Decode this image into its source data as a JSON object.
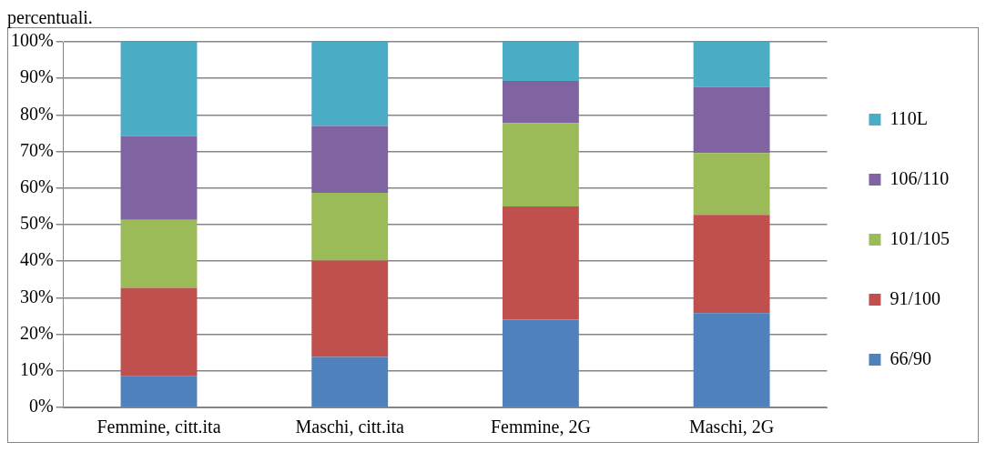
{
  "chart_data": {
    "type": "bar",
    "title": "percentuali.",
    "stacked": true,
    "categories": [
      "Femmine, citt.ita",
      "Maschi, citt.ita",
      "Femmine, 2G",
      "Maschi, 2G"
    ],
    "series": [
      {
        "name": "66/90",
        "color": "#4f81bd",
        "values": [
          8.5,
          13.8,
          24.0,
          25.8
        ]
      },
      {
        "name": "91/100",
        "color": "#c0504d",
        "values": [
          24.2,
          26.4,
          31.0,
          26.9
        ]
      },
      {
        "name": "101/105",
        "color": "#9bbb59",
        "values": [
          18.6,
          18.5,
          22.8,
          16.9
        ]
      },
      {
        "name": "106/110",
        "color": "#8064a2",
        "values": [
          22.9,
          18.3,
          11.5,
          18.0
        ]
      },
      {
        "name": "110L",
        "color": "#4bacc6",
        "values": [
          25.8,
          23.0,
          10.7,
          12.4
        ]
      }
    ],
    "ylim": [
      0,
      100
    ],
    "yticks": [
      {
        "value": 0,
        "label": "0%"
      },
      {
        "value": 10,
        "label": "10%"
      },
      {
        "value": 20,
        "label": "20%"
      },
      {
        "value": 30,
        "label": "30%"
      },
      {
        "value": 40,
        "label": "40%"
      },
      {
        "value": 50,
        "label": "50%"
      },
      {
        "value": 60,
        "label": "60%"
      },
      {
        "value": 70,
        "label": "70%"
      },
      {
        "value": 80,
        "label": "80%"
      },
      {
        "value": 90,
        "label": "90%"
      },
      {
        "value": 100,
        "label": "100%"
      }
    ],
    "grid": "y",
    "legend": "right"
  }
}
